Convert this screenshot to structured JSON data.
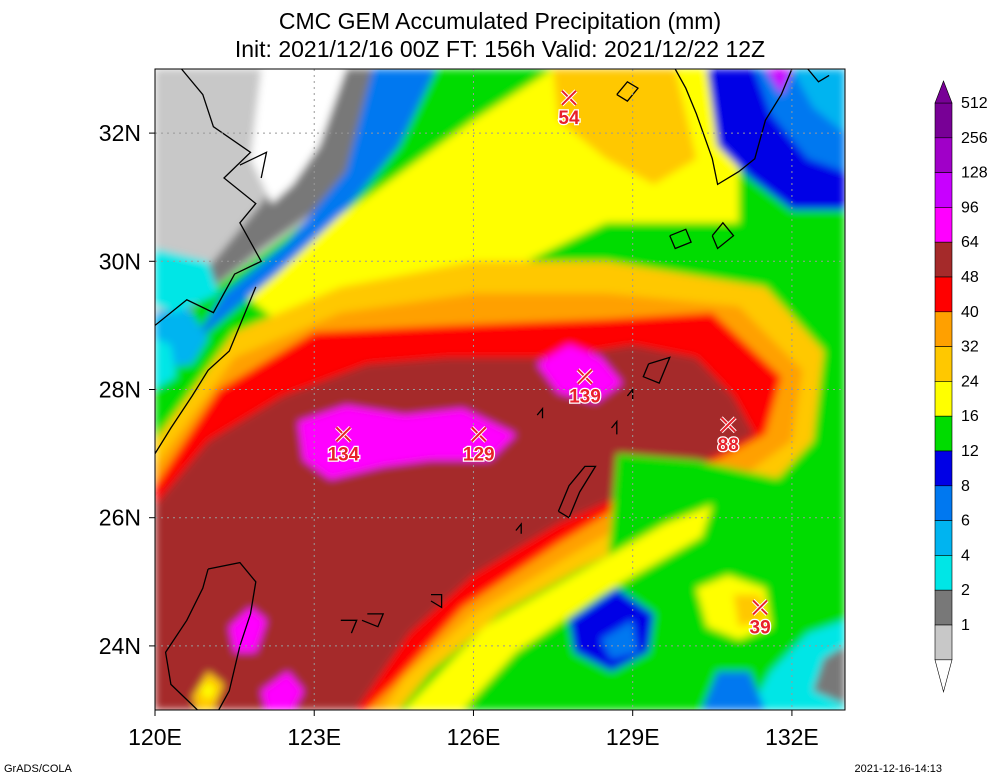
{
  "header": {
    "title": "CMC GEM Accumulated Precipitation (mm)",
    "subtitle": "Init: 2021/12/16 00Z  FT: 156h  Valid: 2021/12/22 12Z"
  },
  "footer": {
    "left": "GrADS/COLA",
    "right": "2021-12-16-14:13"
  },
  "chart_data": {
    "type": "heatmap",
    "title": "CMC GEM Accumulated Precipitation (mm)",
    "subtitle": "Init: 2021/12/16 00Z  FT: 156h  Valid: 2021/12/22 12Z",
    "xlim": [
      120,
      133
    ],
    "ylim": [
      23,
      33
    ],
    "x_ticks": [
      {
        "value": 120,
        "label": "120E"
      },
      {
        "value": 123,
        "label": "123E"
      },
      {
        "value": 126,
        "label": "126E"
      },
      {
        "value": 129,
        "label": "129E"
      },
      {
        "value": 132,
        "label": "132E"
      }
    ],
    "y_ticks": [
      {
        "value": 24,
        "label": "24N"
      },
      {
        "value": 26,
        "label": "26N"
      },
      {
        "value": 28,
        "label": "28N"
      },
      {
        "value": 30,
        "label": "30N"
      },
      {
        "value": 32,
        "label": "32N"
      }
    ],
    "grid": true,
    "levels": [
      {
        "label": "1",
        "color": "#c8c8c8"
      },
      {
        "label": "2",
        "color": "#787878"
      },
      {
        "label": "4",
        "color": "#00e6e6"
      },
      {
        "label": "6",
        "color": "#00b4f0"
      },
      {
        "label": "8",
        "color": "#0078f0"
      },
      {
        "label": "12",
        "color": "#0000e6"
      },
      {
        "label": "16",
        "color": "#00dc00"
      },
      {
        "label": "24",
        "color": "#ffff00"
      },
      {
        "label": "32",
        "color": "#ffc800"
      },
      {
        "label": "40",
        "color": "#ffa000"
      },
      {
        "label": "48",
        "color": "#ff0000"
      },
      {
        "label": "64",
        "color": "#a52a2a"
      },
      {
        "label": "96",
        "color": "#ff00ff"
      },
      {
        "label": "128",
        "color": "#c800ff"
      },
      {
        "label": "256",
        "color": "#a000c8"
      },
      {
        "label": "512",
        "color": "#780096"
      }
    ],
    "maxima": [
      {
        "lon": 127.8,
        "lat": 32.55,
        "value": "54"
      },
      {
        "lon": 123.55,
        "lat": 27.3,
        "value": "134"
      },
      {
        "lon": 126.1,
        "lat": 27.3,
        "value": "129"
      },
      {
        "lon": 128.1,
        "lat": 28.2,
        "value": "139"
      },
      {
        "lon": 130.8,
        "lat": 27.45,
        "value": "88"
      },
      {
        "lon": 131.4,
        "lat": 24.6,
        "value": "39"
      }
    ]
  }
}
